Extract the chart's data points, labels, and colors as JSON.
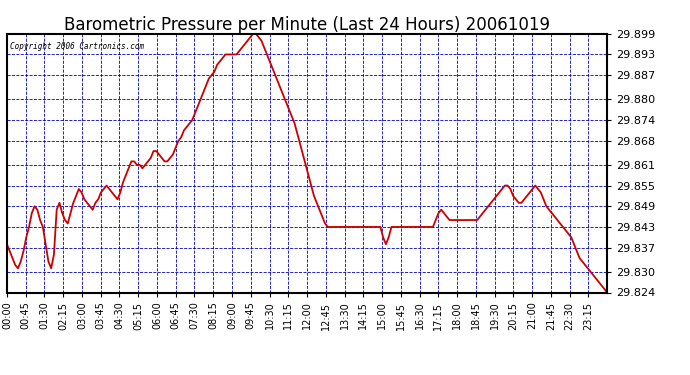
{
  "title": "Barometric Pressure per Minute (Last 24 Hours) 20061019",
  "copyright": "Copyright 2006 Cartronics.com",
  "background_color": "#ffffff",
  "plot_background": "#ffffff",
  "line_color": "#cc0000",
  "grid_color": "#0000bb",
  "text_color": "#000000",
  "ytick_color": "#000000",
  "xtick_color": "#000000",
  "ylim": [
    29.824,
    29.899
  ],
  "yticks": [
    29.824,
    29.83,
    29.837,
    29.843,
    29.849,
    29.855,
    29.861,
    29.868,
    29.874,
    29.88,
    29.887,
    29.893,
    29.899
  ],
  "xtick_labels": [
    "00:00",
    "00:45",
    "01:30",
    "02:15",
    "03:00",
    "03:45",
    "04:30",
    "05:15",
    "06:00",
    "06:45",
    "07:30",
    "08:15",
    "09:00",
    "09:45",
    "10:30",
    "11:15",
    "12:00",
    "12:45",
    "13:30",
    "14:15",
    "15:00",
    "15:45",
    "16:30",
    "17:15",
    "18:00",
    "18:45",
    "19:30",
    "20:15",
    "21:00",
    "21:45",
    "22:30",
    "23:15"
  ],
  "title_fontsize": 12,
  "line_width": 1.3,
  "pressure_data": [
    29.838,
    29.836,
    29.834,
    29.832,
    29.831,
    29.833,
    29.836,
    29.84,
    29.843,
    29.847,
    29.849,
    29.848,
    29.845,
    29.843,
    29.838,
    29.833,
    29.831,
    29.835,
    29.848,
    29.85,
    29.847,
    29.845,
    29.844,
    29.847,
    29.85,
    29.852,
    29.854,
    29.853,
    29.851,
    29.85,
    29.849,
    29.848,
    29.85,
    29.851,
    29.853,
    29.854,
    29.855,
    29.854,
    29.853,
    29.852,
    29.851,
    29.853,
    29.856,
    29.858,
    29.86,
    29.862,
    29.862,
    29.861,
    29.861,
    29.86,
    29.861,
    29.862,
    29.863,
    29.865,
    29.865,
    29.864,
    29.863,
    29.862,
    29.862,
    29.863,
    29.864,
    29.866,
    29.868,
    29.869,
    29.871,
    29.872,
    29.873,
    29.874,
    29.876,
    29.878,
    29.88,
    29.882,
    29.884,
    29.886,
    29.887,
    29.888,
    29.89,
    29.891,
    29.892,
    29.893,
    29.893,
    29.893,
    29.893,
    29.893,
    29.894,
    29.895,
    29.896,
    29.897,
    29.898,
    29.899,
    29.899,
    29.898,
    29.897,
    29.895,
    29.893,
    29.891,
    29.889,
    29.887,
    29.885,
    29.883,
    29.881,
    29.879,
    29.877,
    29.875,
    29.873,
    29.87,
    29.867,
    29.864,
    29.861,
    29.858,
    29.855,
    29.852,
    29.85,
    29.848,
    29.846,
    29.844,
    29.843,
    29.843,
    29.843,
    29.843,
    29.843,
    29.843,
    29.843,
    29.843,
    29.843,
    29.843,
    29.843,
    29.843,
    29.843,
    29.843,
    29.843,
    29.843,
    29.843,
    29.843,
    29.843,
    29.843,
    29.84,
    29.838,
    29.84,
    29.843,
    29.843,
    29.843,
    29.843,
    29.843,
    29.843,
    29.843,
    29.843,
    29.843,
    29.843,
    29.843,
    29.843,
    29.843,
    29.843,
    29.843,
    29.843,
    29.845,
    29.847,
    29.848,
    29.847,
    29.846,
    29.845,
    29.845,
    29.845,
    29.845,
    29.845,
    29.845,
    29.845,
    29.845,
    29.845,
    29.845,
    29.845,
    29.846,
    29.847,
    29.848,
    29.849,
    29.85,
    29.851,
    29.852,
    29.853,
    29.854,
    29.855,
    29.855,
    29.854,
    29.852,
    29.851,
    29.85,
    29.85,
    29.851,
    29.852,
    29.853,
    29.854,
    29.855,
    29.854,
    29.853,
    29.851,
    29.849,
    29.848,
    29.847,
    29.846,
    29.845,
    29.844,
    29.843,
    29.842,
    29.841,
    29.84,
    29.838,
    29.836,
    29.834,
    29.833,
    29.832,
    29.831,
    29.83,
    29.829,
    29.828,
    29.827,
    29.826,
    29.825,
    29.824
  ]
}
